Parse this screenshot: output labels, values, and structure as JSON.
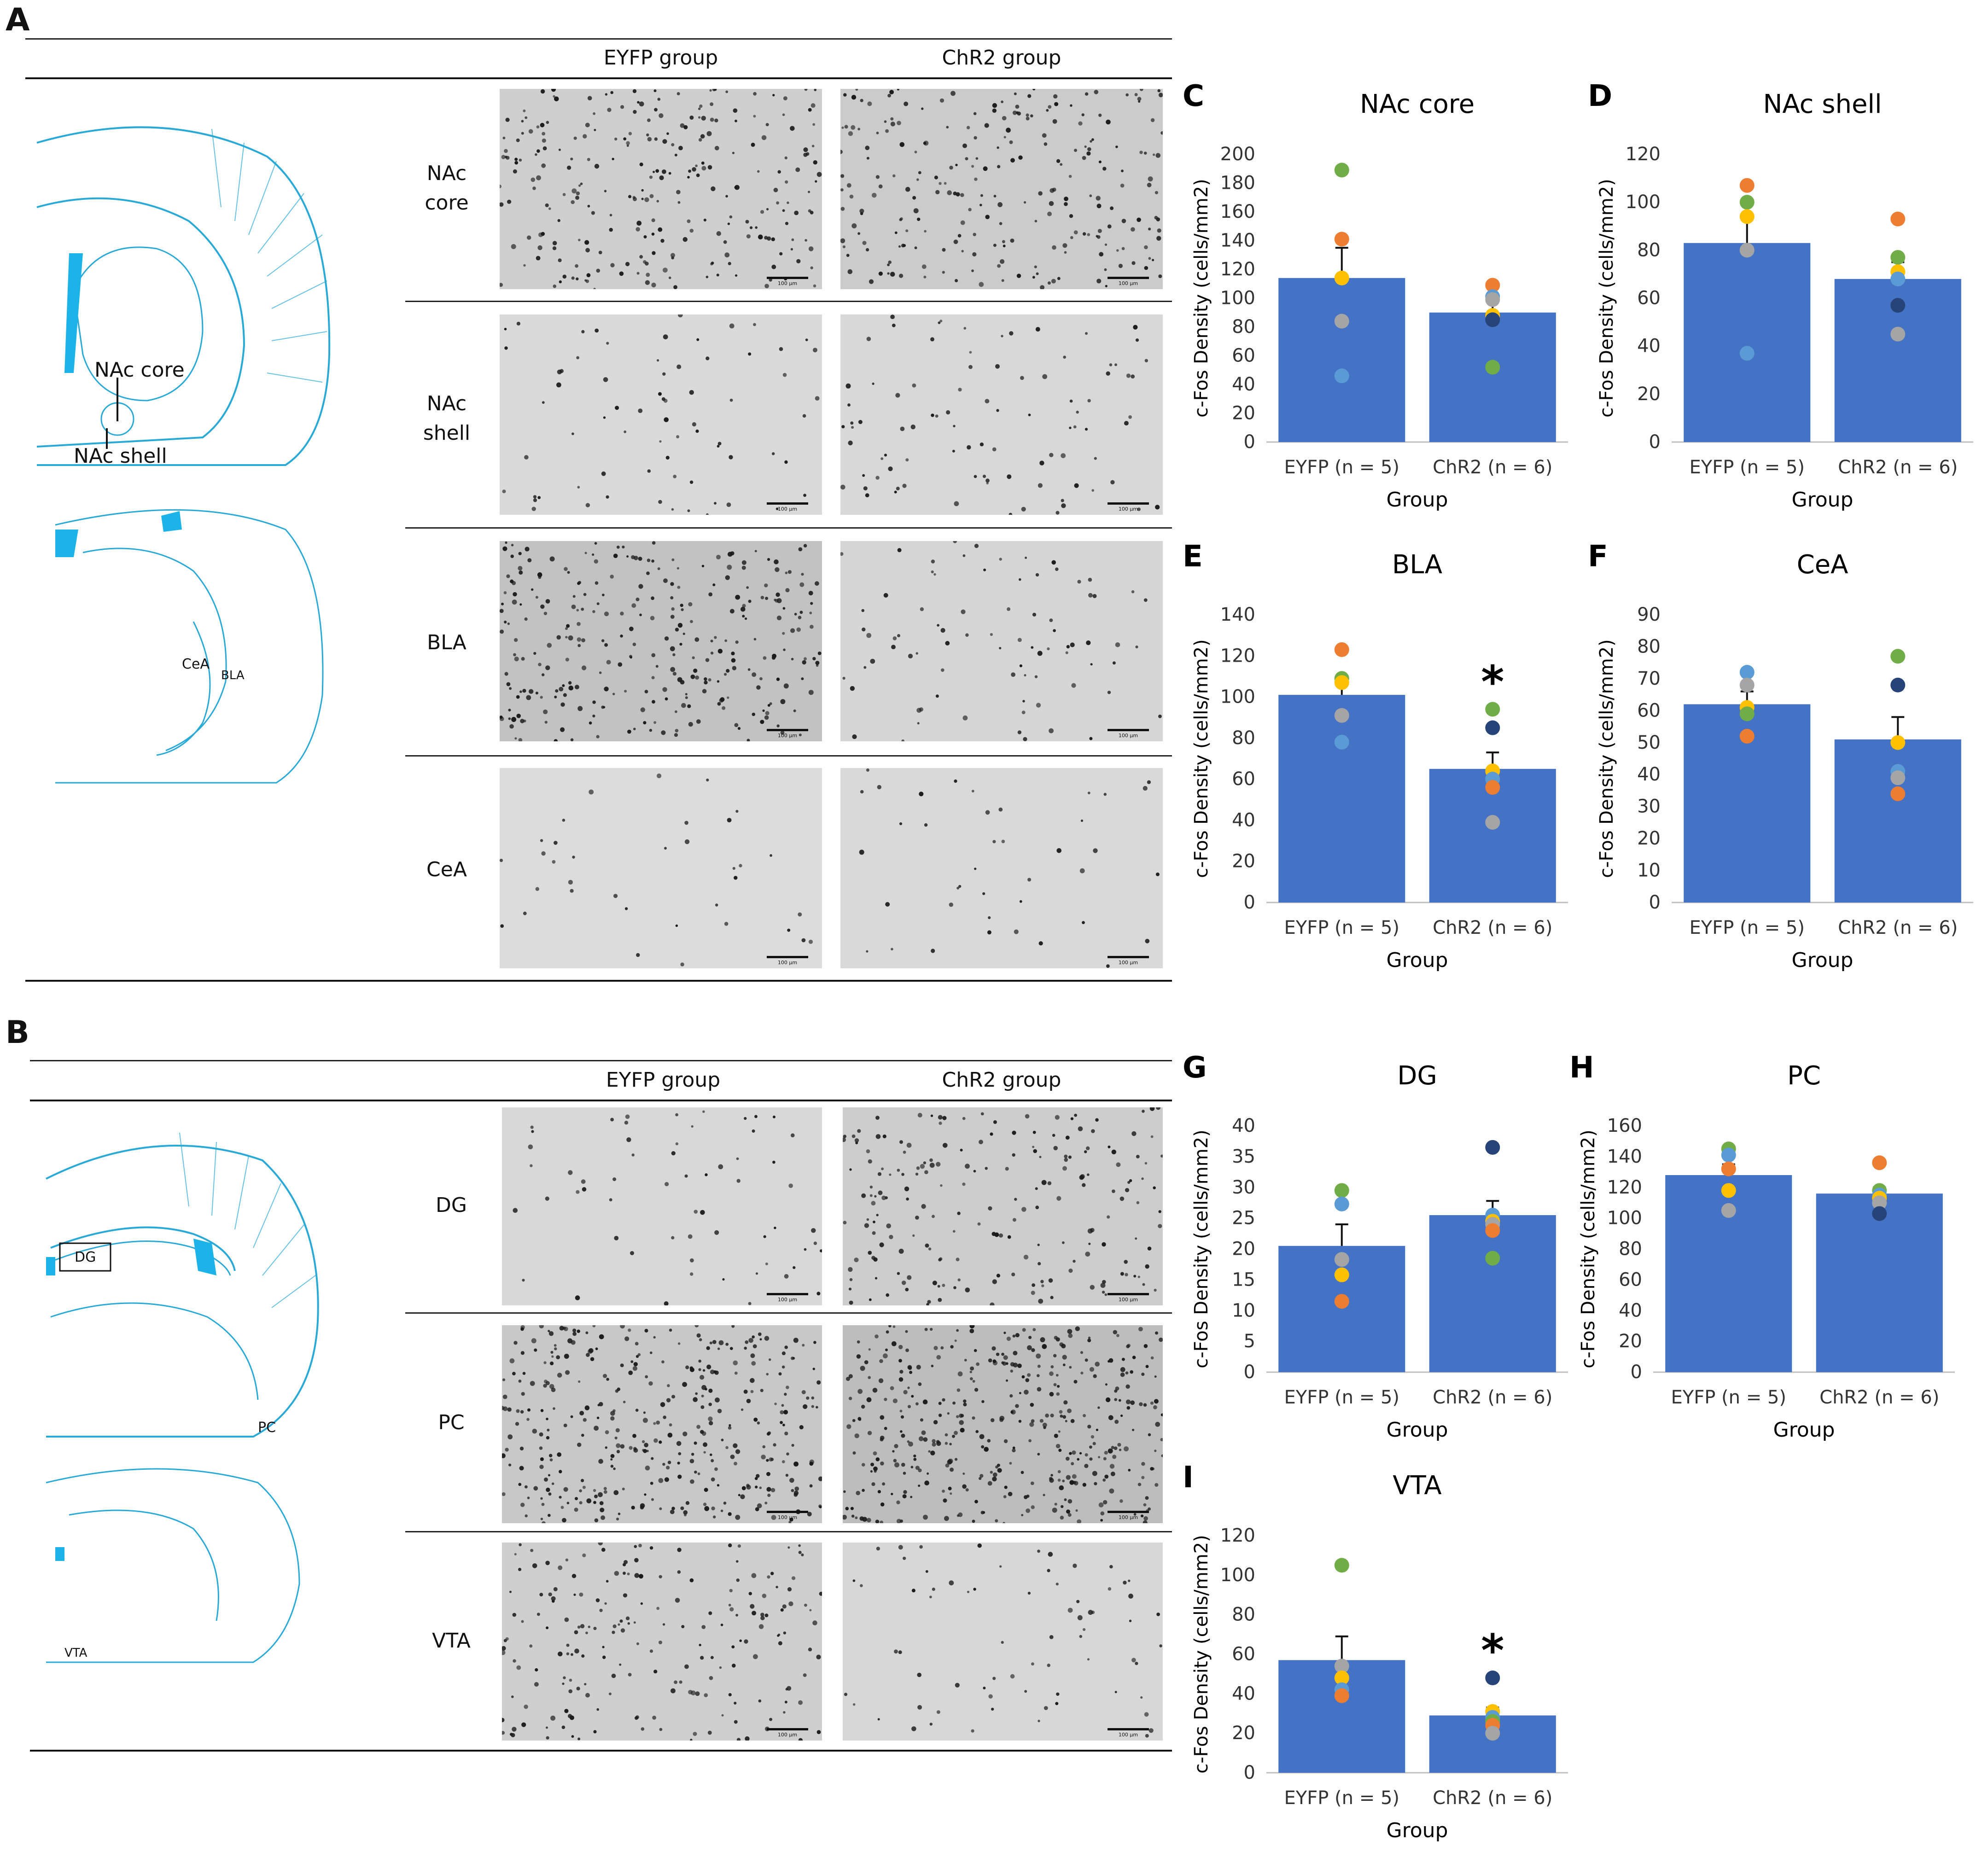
{
  "panels": {
    "A": {
      "letter": "A",
      "col_headers": [
        "EYFP group",
        "ChR2 group"
      ],
      "rows": [
        "NAc\ncore",
        "NAc\nshell",
        "BLA",
        "CeA"
      ],
      "atlas_labels": {
        "nac_core": "NAc core",
        "nac_shell": "NAc shell",
        "cea": "CeA",
        "bla": "BLA"
      },
      "scale_text": "100 µm"
    },
    "B": {
      "letter": "B",
      "col_headers": [
        "EYFP group",
        "ChR2 group"
      ],
      "rows": [
        "DG",
        "PC",
        "VTA"
      ],
      "atlas_labels": {
        "dg": "DG",
        "pc": "PC",
        "vta": "VTA"
      },
      "scale_text": "100 µm"
    }
  },
  "colors": {
    "bar": "#4472C4",
    "atlas": "#29A9D6",
    "atlas_fill": "#1BB3E8",
    "dots": {
      "orange": "#ED7D31",
      "green": "#70AD47",
      "yellow": "#FFC000",
      "gray": "#A5A5A5",
      "lightblue": "#5B9BD5",
      "navy": "#264478"
    }
  },
  "chart_data": [
    {
      "id": "C",
      "letter": "C",
      "type": "bar",
      "title": "NAc core",
      "categories": [
        "EYFP (n = 5)",
        "ChR2 (n = 6)"
      ],
      "values": [
        114,
        90
      ],
      "errors": [
        21,
        9
      ],
      "xlabel": "Group",
      "ylabel": "c-Fos Density (cells/mm2)",
      "ylim": [
        0,
        200
      ],
      "yticks": [
        0,
        20,
        40,
        60,
        80,
        100,
        120,
        140,
        160,
        180,
        200
      ],
      "points": [
        [
          {
            "v": 189,
            "c": "green"
          },
          {
            "v": 141,
            "c": "orange"
          },
          {
            "v": 114,
            "c": "yellow"
          },
          {
            "v": 84,
            "c": "gray"
          },
          {
            "v": 46,
            "c": "lightblue"
          }
        ],
        [
          {
            "v": 109,
            "c": "orange"
          },
          {
            "v": 101,
            "c": "lightblue"
          },
          {
            "v": 99,
            "c": "gray"
          },
          {
            "v": 88,
            "c": "yellow"
          },
          {
            "v": 85,
            "c": "navy"
          },
          {
            "v": 52,
            "c": "green"
          }
        ]
      ],
      "signif": [
        "",
        ""
      ]
    },
    {
      "id": "D",
      "letter": "D",
      "type": "bar",
      "title": "NAc shell",
      "categories": [
        "EYFP (n = 5)",
        "ChR2 (n = 6)"
      ],
      "values": [
        83,
        68
      ],
      "errors": [
        12,
        7
      ],
      "xlabel": "Group",
      "ylabel": "c-Fos Density (cells/mm2)",
      "ylim": [
        0,
        120
      ],
      "yticks": [
        0,
        20,
        40,
        60,
        80,
        100,
        120
      ],
      "points": [
        [
          {
            "v": 107,
            "c": "orange"
          },
          {
            "v": 100,
            "c": "green"
          },
          {
            "v": 94,
            "c": "yellow"
          },
          {
            "v": 80,
            "c": "gray"
          },
          {
            "v": 37,
            "c": "lightblue"
          }
        ],
        [
          {
            "v": 93,
            "c": "orange"
          },
          {
            "v": 77,
            "c": "green"
          },
          {
            "v": 71,
            "c": "yellow"
          },
          {
            "v": 68,
            "c": "lightblue"
          },
          {
            "v": 57,
            "c": "navy"
          },
          {
            "v": 45,
            "c": "gray"
          }
        ]
      ],
      "signif": [
        "",
        ""
      ]
    },
    {
      "id": "E",
      "letter": "E",
      "type": "bar",
      "title": "BLA",
      "categories": [
        "EYFP (n = 5)",
        "ChR2 (n = 6)"
      ],
      "values": [
        101,
        65
      ],
      "errors": [
        6,
        8
      ],
      "xlabel": "Group",
      "ylabel": "c-Fos Density (cells/mm2)",
      "ylim": [
        0,
        140
      ],
      "yticks": [
        0,
        20,
        40,
        60,
        80,
        100,
        120,
        140
      ],
      "points": [
        [
          {
            "v": 123,
            "c": "orange"
          },
          {
            "v": 109,
            "c": "green"
          },
          {
            "v": 107,
            "c": "yellow"
          },
          {
            "v": 91,
            "c": "gray"
          },
          {
            "v": 78,
            "c": "lightblue"
          }
        ],
        [
          {
            "v": 94,
            "c": "green"
          },
          {
            "v": 85,
            "c": "navy"
          },
          {
            "v": 64,
            "c": "yellow"
          },
          {
            "v": 60,
            "c": "lightblue"
          },
          {
            "v": 56,
            "c": "orange"
          },
          {
            "v": 39,
            "c": "gray"
          }
        ]
      ],
      "signif": [
        "",
        "*"
      ]
    },
    {
      "id": "F",
      "letter": "F",
      "type": "bar",
      "title": "CeA",
      "categories": [
        "EYFP (n = 5)",
        "ChR2 (n = 6)"
      ],
      "values": [
        62,
        51
      ],
      "errors": [
        4,
        7
      ],
      "xlabel": "Group",
      "ylabel": "c-Fos Density (cells/mm2)",
      "ylim": [
        0,
        90
      ],
      "yticks": [
        0,
        10,
        20,
        30,
        40,
        50,
        60,
        70,
        80,
        90
      ],
      "points": [
        [
          {
            "v": 72,
            "c": "lightblue"
          },
          {
            "v": 68,
            "c": "gray"
          },
          {
            "v": 61,
            "c": "yellow"
          },
          {
            "v": 59,
            "c": "green"
          },
          {
            "v": 52,
            "c": "orange"
          }
        ],
        [
          {
            "v": 77,
            "c": "green"
          },
          {
            "v": 68,
            "c": "navy"
          },
          {
            "v": 50,
            "c": "yellow"
          },
          {
            "v": 41,
            "c": "lightblue"
          },
          {
            "v": 39,
            "c": "gray"
          },
          {
            "v": 34,
            "c": "orange"
          }
        ]
      ],
      "signif": [
        "",
        ""
      ]
    },
    {
      "id": "G",
      "letter": "G",
      "type": "bar",
      "title": "DG",
      "categories": [
        "EYFP (n = 5)",
        "ChR2 (n = 6)"
      ],
      "values": [
        20.5,
        25.5
      ],
      "errors": [
        3.5,
        2.3
      ],
      "xlabel": "Group",
      "ylabel": "c-Fos Density (cells/mm2)",
      "ylim": [
        0,
        40
      ],
      "yticks": [
        0,
        5,
        10,
        15,
        20,
        25,
        30,
        35,
        40
      ],
      "points": [
        [
          {
            "v": 29.5,
            "c": "green"
          },
          {
            "v": 27.3,
            "c": "lightblue"
          },
          {
            "v": 18.3,
            "c": "gray"
          },
          {
            "v": 15.8,
            "c": "yellow"
          },
          {
            "v": 11.5,
            "c": "orange"
          }
        ],
        [
          {
            "v": 36.5,
            "c": "navy"
          },
          {
            "v": 25.5,
            "c": "lightblue"
          },
          {
            "v": 24.5,
            "c": "yellow"
          },
          {
            "v": 24.0,
            "c": "gray"
          },
          {
            "v": 23.0,
            "c": "orange"
          },
          {
            "v": 18.5,
            "c": "green"
          }
        ]
      ],
      "signif": [
        "",
        ""
      ]
    },
    {
      "id": "H",
      "letter": "H",
      "type": "bar",
      "title": "PC",
      "categories": [
        "EYFP (n = 5)",
        "ChR2 (n = 6)"
      ],
      "values": [
        128,
        116
      ],
      "errors": [
        7,
        4
      ],
      "xlabel": "Group",
      "ylabel": "c-Fos Density (cells/mm2)",
      "ylim": [
        0,
        160
      ],
      "yticks": [
        0,
        20,
        40,
        60,
        80,
        100,
        120,
        140,
        160
      ],
      "points": [
        [
          {
            "v": 145,
            "c": "green"
          },
          {
            "v": 141,
            "c": "lightblue"
          },
          {
            "v": 132,
            "c": "orange"
          },
          {
            "v": 118,
            "c": "yellow"
          },
          {
            "v": 105,
            "c": "gray"
          }
        ],
        [
          {
            "v": 136,
            "c": "orange"
          },
          {
            "v": 118,
            "c": "green"
          },
          {
            "v": 115,
            "c": "lightblue"
          },
          {
            "v": 113,
            "c": "yellow"
          },
          {
            "v": 110,
            "c": "gray"
          },
          {
            "v": 103,
            "c": "navy"
          }
        ]
      ],
      "signif": [
        "",
        ""
      ]
    },
    {
      "id": "I",
      "letter": "I",
      "type": "bar",
      "title": "VTA",
      "categories": [
        "EYFP (n = 5)",
        "ChR2 (n = 6)"
      ],
      "values": [
        57,
        29
      ],
      "errors": [
        12,
        4
      ],
      "xlabel": "Group",
      "ylabel": "c-Fos Density (cells/mm2)",
      "ylim": [
        0,
        120
      ],
      "yticks": [
        0,
        20,
        40,
        60,
        80,
        100,
        120
      ],
      "points": [
        [
          {
            "v": 105,
            "c": "green"
          },
          {
            "v": 54,
            "c": "gray"
          },
          {
            "v": 48,
            "c": "yellow"
          },
          {
            "v": 42,
            "c": "lightblue"
          },
          {
            "v": 39,
            "c": "orange"
          }
        ],
        [
          {
            "v": 48,
            "c": "navy"
          },
          {
            "v": 31,
            "c": "yellow"
          },
          {
            "v": 28,
            "c": "lightblue"
          },
          {
            "v": 26,
            "c": "green"
          },
          {
            "v": 24,
            "c": "orange"
          },
          {
            "v": 20,
            "c": "gray"
          }
        ]
      ],
      "signif": [
        "",
        "*"
      ]
    }
  ]
}
